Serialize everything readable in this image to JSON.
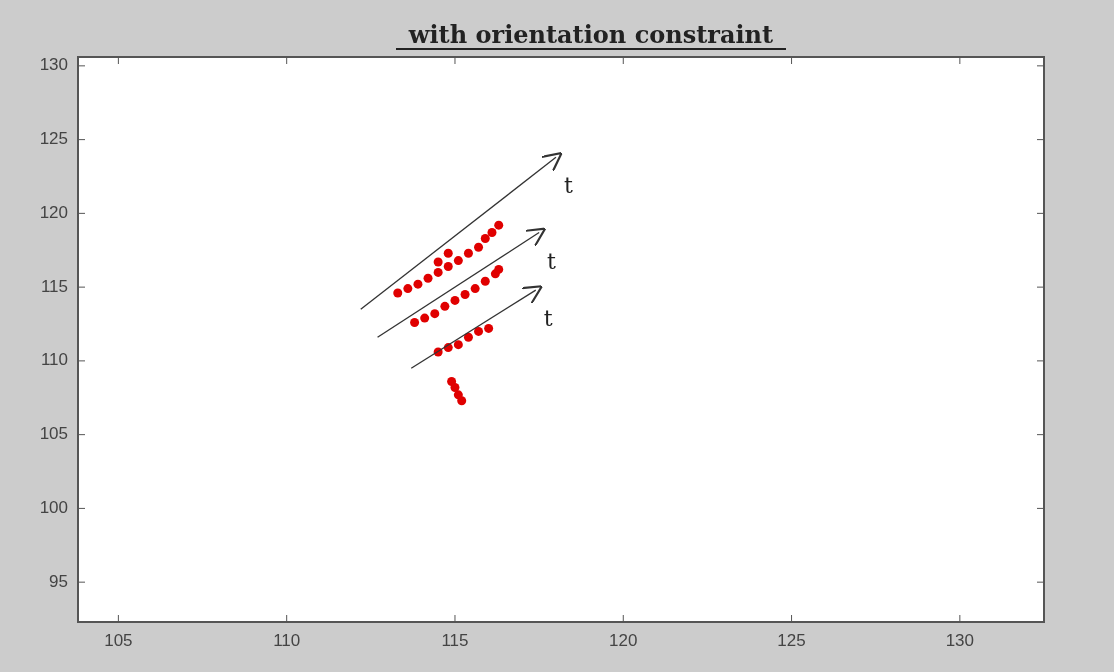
{
  "chart_data": {
    "type": "scatter",
    "title": "with orientation constraint",
    "xlim": [
      103.8,
      132.5
    ],
    "ylim": [
      92.3,
      130.6
    ],
    "xticks": [
      105,
      110,
      115,
      120,
      125,
      130
    ],
    "yticks": [
      95,
      100,
      105,
      110,
      115,
      120,
      125,
      130
    ],
    "grid": false,
    "series": [
      {
        "marker": "circle",
        "color": "#e00000",
        "x": [
          113.3,
          113.6,
          113.9,
          114.2,
          114.5,
          114.8,
          114.5,
          114.8,
          115.1,
          115.4,
          115.7,
          115.9,
          116.1,
          116.3,
          113.8,
          114.1,
          114.4,
          114.7,
          115.0,
          115.3,
          115.6,
          115.9,
          116.2,
          116.3,
          114.5,
          114.8,
          115.1,
          115.4,
          115.7,
          116.0,
          114.9,
          115.0,
          115.1,
          115.2
        ],
        "values": [
          114.6,
          114.9,
          115.2,
          115.6,
          116.0,
          116.4,
          116.7,
          117.3,
          116.8,
          117.3,
          117.7,
          118.3,
          118.7,
          119.2,
          112.6,
          112.9,
          113.2,
          113.7,
          114.1,
          114.5,
          114.9,
          115.4,
          115.9,
          116.2,
          110.6,
          110.9,
          111.1,
          111.6,
          112.0,
          112.2,
          108.6,
          108.2,
          107.7,
          107.3
        ]
      },
      {
        "type": "line",
        "color": "#333333",
        "x": [
          112.2,
          118.0
        ],
        "values": [
          113.5,
          123.8
        ]
      },
      {
        "type": "line",
        "color": "#333333",
        "x": [
          112.7,
          117.5
        ],
        "values": [
          111.6,
          118.7
        ]
      },
      {
        "type": "line",
        "color": "#333333",
        "x": [
          113.7,
          117.4
        ],
        "values": [
          109.5,
          114.8
        ]
      }
    ],
    "annotations": [
      "t",
      "t",
      "t"
    ]
  }
}
